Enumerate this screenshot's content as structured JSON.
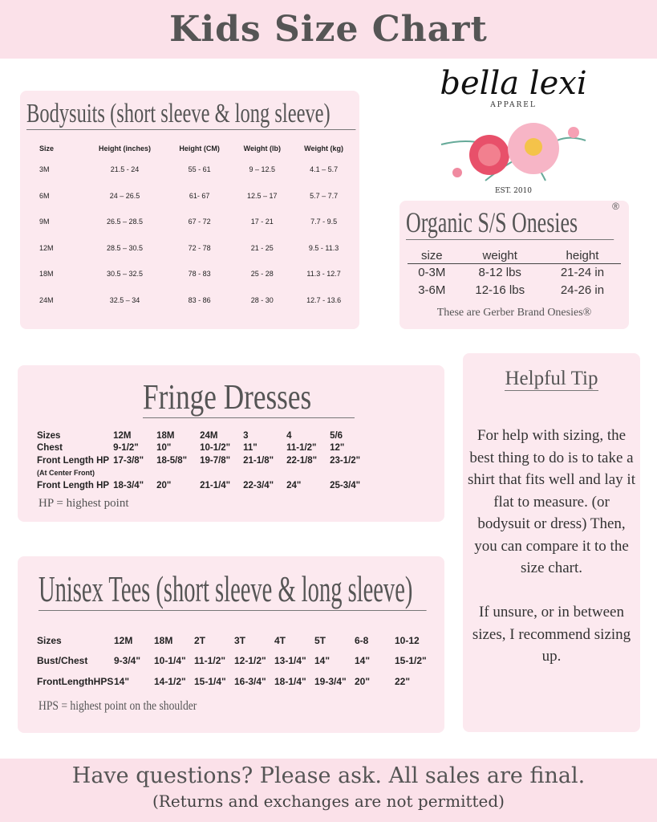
{
  "header": {
    "title": "Kids Size Chart"
  },
  "logo": {
    "name": "bella lexi",
    "sub": "APPAREL",
    "est": "EST. 2010"
  },
  "bodysuits": {
    "title": "Bodysuits (short sleeve & long sleeve)",
    "columns": [
      "Size",
      "Height (inches)",
      "Height (CM)",
      "Weight (lb)",
      "Weight (kg)"
    ],
    "rows": [
      [
        "3M",
        "21.5 - 24",
        "55 - 61",
        "9 – 12.5",
        "4.1 – 5.7"
      ],
      [
        "6M",
        "24 – 26.5",
        "61- 67",
        "12.5 – 17",
        "5.7 – 7.7"
      ],
      [
        "9M",
        "26.5 – 28.5",
        "67 - 72",
        "17 - 21",
        "7.7 - 9.5"
      ],
      [
        "12M",
        "28.5 – 30.5",
        "72 - 78",
        "21 - 25",
        "9.5 - 11.3"
      ],
      [
        "18M",
        "30.5 – 32.5",
        "78 - 83",
        "25 - 28",
        "11.3 - 12.7"
      ],
      [
        "24M",
        "32.5 – 34",
        "83 - 86",
        "28 - 30",
        "12.7 - 13.6"
      ]
    ]
  },
  "organic": {
    "title": "Organic S/S Onesies",
    "reg": "®",
    "columns": [
      "size",
      "weight",
      "height"
    ],
    "rows": [
      [
        "0-3M",
        "8-12 lbs",
        "21-24 in"
      ],
      [
        "3-6M",
        "12-16 lbs",
        "24-26 in"
      ]
    ],
    "note": "These are Gerber Brand Onesies®"
  },
  "fringe": {
    "title": "Fringe Dresses",
    "rows": [
      [
        "Sizes",
        "12M",
        "18M",
        "24M",
        "3",
        "4",
        "5/6"
      ],
      [
        "Chest",
        "9-1/2\"",
        "10\"",
        "10-1/2\"",
        "11\"",
        "11-1/2\"",
        "12\""
      ],
      [
        "Front Length HP",
        "17-3/8\"",
        "18-5/8\"",
        "19-7/8\"",
        "21-1/8\"",
        "22-1/8\"",
        "23-1/2\""
      ],
      [
        "(At Center Front)",
        "",
        "",
        "",
        "",
        "",
        ""
      ],
      [
        "Front Length HP",
        "18-3/4\"",
        "20\"",
        "21-1/4\"",
        "22-3/4\"",
        "24\"",
        "25-3/4\""
      ]
    ],
    "note": "HP = highest point"
  },
  "tip": {
    "title": "Helpful Tip",
    "text": "For help with sizing, the best thing to do is to take a shirt that fits well and lay it flat to measure. (or bodysuit or dress) Then, you can compare it to the size chart.\n\nIf unsure, or in between sizes, I recommend sizing up."
  },
  "tees": {
    "title": "Unisex Tees (short sleeve & long sleeve)",
    "rows": [
      [
        "Sizes",
        "12M",
        "18M",
        "2T",
        "3T",
        "4T",
        "5T",
        "6-8",
        "10-12"
      ],
      [
        "Bust/Chest",
        "9-3/4\"",
        "10-1/4\"",
        "11-1/2\"",
        "12-1/2\"",
        "13-1/4\"",
        "14\"",
        "14\"",
        "15-1/2\""
      ],
      [
        "FrontLengthHPS",
        "14\"",
        "14-1/2\"",
        "15-1/4\"",
        "16-3/4\"",
        "18-1/4\"",
        "19-3/4\"",
        "20\"",
        "22\""
      ]
    ],
    "note": "HPS = highest point on the shoulder"
  },
  "footer": {
    "line1": "Have questions? Please ask. All sales are final.",
    "line2": "(Returns and exchanges are not permitted)"
  }
}
